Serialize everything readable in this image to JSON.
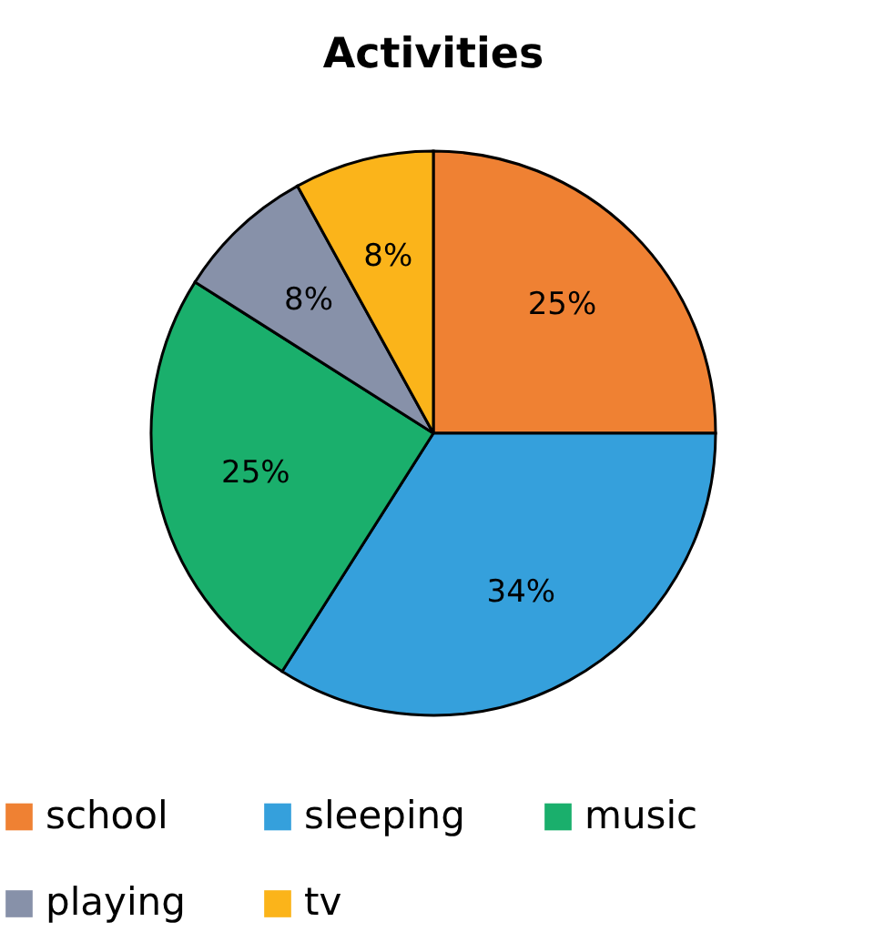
{
  "chart_data": {
    "type": "pie",
    "title": "Activities",
    "categories": [
      "school",
      "sleeping",
      "music",
      "playing",
      "tv"
    ],
    "values": [
      25,
      34,
      25,
      8,
      8
    ],
    "value_labels": [
      "25%",
      "34%",
      "25%",
      "8%",
      "8%"
    ],
    "colors": [
      "#ef8133",
      "#35a0dc",
      "#1aaf6c",
      "#8791a9",
      "#fbb41a"
    ],
    "legend": "bottom"
  }
}
